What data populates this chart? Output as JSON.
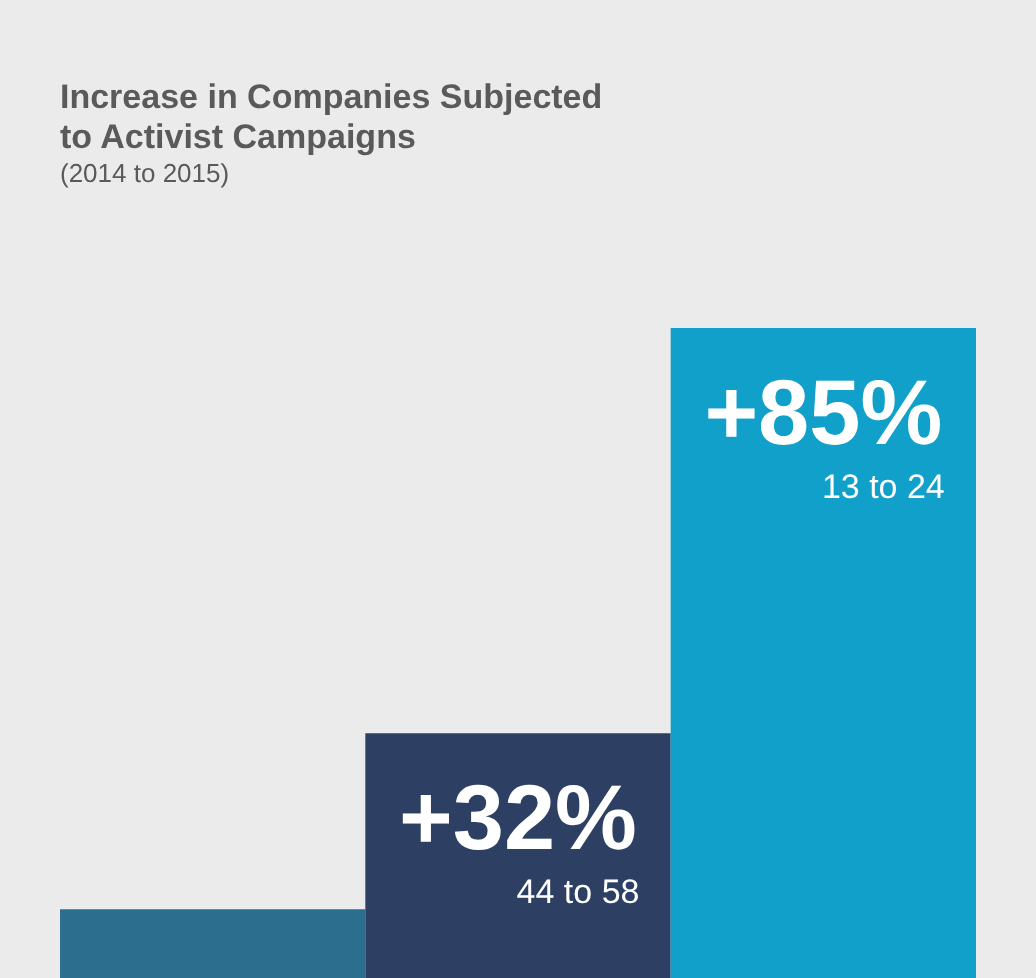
{
  "chart_data": {
    "type": "bar",
    "title": "Increase in Companies Subjected to Activist Campaigns",
    "subtitle": "(2014 to 2015)",
    "categories": [
      null,
      null,
      null
    ],
    "values": [
      9,
      32,
      85
    ],
    "colors": [
      "#2c6e8e",
      "#2d3f63",
      "#10a0c9"
    ],
    "value_labels": [
      null,
      "+32%",
      "+85%"
    ],
    "annotations": [
      "44 to 58",
      "13 to 24"
    ]
  }
}
